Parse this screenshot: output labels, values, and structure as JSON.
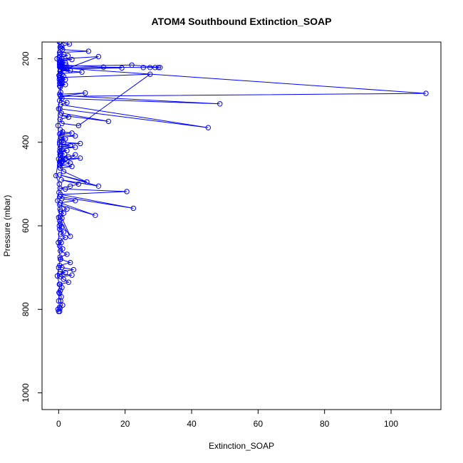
{
  "chart_data": {
    "type": "line",
    "title": "ATOM4 Southbound Extinction_SOAP",
    "xlabel": "Extinction_SOAP",
    "ylabel": "Pressure (mbar)",
    "xlim": [
      -5,
      115
    ],
    "ylim": [
      1040,
      160
    ],
    "y_reversed": true,
    "x_ticks": [
      0,
      20,
      40,
      60,
      80,
      100
    ],
    "y_ticks": [
      200,
      400,
      600,
      800,
      1000
    ],
    "grid": false,
    "legend": "none",
    "markers": "open-circle",
    "series_color": "#0000ff",
    "series": [
      {
        "x": [
          0.5,
          3.2,
          1.0,
          0.4,
          0.8,
          1.2,
          9.0,
          0.3,
          0.6,
          1.5,
          2.8,
          0.4,
          0.2,
          1.0,
          4.0,
          0.6,
          1.2,
          0.3,
          0.8,
          2.2,
          0.5,
          0.3,
          2.5,
          19.0,
          1.5,
          0.6,
          3.5,
          0.4,
          12.0,
          1.0,
          0.5,
          2.0,
          0.3,
          0.6,
          0.4,
          1.0,
          1.2,
          2.5,
          0.6,
          7.0,
          0.5,
          1.0,
          0.3,
          1.5,
          0.4,
          0.8,
          0.2,
          0.5,
          1.0,
          0.3,
          0.6,
          2.0,
          0.4,
          0.5
        ],
        "y": [
          160,
          165,
          170,
          172,
          175,
          178,
          182,
          185,
          188,
          190,
          193,
          195,
          198,
          200,
          202,
          205,
          208,
          210,
          212,
          215,
          218,
          220,
          221,
          222,
          224,
          226,
          228,
          230,
          195,
          200,
          205,
          210,
          212,
          215,
          218,
          220,
          222,
          225,
          228,
          232,
          235,
          238,
          240,
          242,
          245,
          248,
          250,
          252,
          255,
          258,
          260,
          262,
          265,
          268
        ]
      },
      {
        "x": [
          0.3,
          13.5,
          25.5,
          27.5,
          29.0,
          30.0,
          30.5,
          22.0,
          0.5,
          1.0,
          110.5,
          0.6,
          8.0,
          0.3,
          0.5,
          48.5,
          1.0,
          0.3,
          2.5,
          0.6,
          45.0,
          0.4,
          0.8,
          15.0,
          0.5,
          3.0,
          0.4,
          1.0,
          6.0,
          27.5,
          0.3,
          2.0,
          0.5,
          1.0,
          0.3
        ],
        "y": [
          215,
          220,
          221,
          221,
          221,
          221,
          221,
          215,
          218,
          222,
          283,
          290,
          282,
          285,
          288,
          308,
          295,
          300,
          305,
          310,
          365,
          320,
          330,
          350,
          335,
          340,
          345,
          355,
          360,
          237,
          245,
          250,
          255,
          260,
          265
        ]
      },
      {
        "x": [
          0.5,
          1.2,
          4.0,
          0.3,
          1.0,
          5.0,
          0.6,
          2.0,
          0.4,
          0.8,
          1.5,
          6.5,
          0.3,
          3.5,
          0.6,
          5.0,
          0.4,
          1.0,
          2.5,
          0.3,
          0.6,
          1.8,
          0.4,
          0.5,
          3.0,
          0.8,
          2.0,
          0.5,
          1.2,
          0.3,
          0.8,
          0.4
        ],
        "y": [
          370,
          375,
          378,
          380,
          382,
          385,
          388,
          392,
          395,
          398,
          400,
          403,
          405,
          408,
          410,
          412,
          415,
          418,
          420,
          422,
          425,
          428,
          430,
          432,
          435,
          438,
          440,
          442,
          445,
          448,
          450,
          452
        ]
      },
      {
        "x": [
          0.4,
          5.0,
          0.6,
          6.5,
          1.0,
          3.5,
          0.3,
          4.0,
          0.5,
          1.5,
          8.5,
          0.3,
          12.0,
          0.8,
          6.0,
          3.5,
          0.4,
          2.0,
          20.5,
          0.6,
          22.5,
          0.3,
          1.0,
          5.0,
          0.5,
          11.0,
          0.3,
          2.5,
          0.6,
          1.5,
          0.4,
          1.0,
          3.5,
          0.3
        ],
        "y": [
          455,
          430,
          440,
          438,
          445,
          450,
          455,
          458,
          462,
          470,
          495,
          478,
          505,
          490,
          500,
          505,
          510,
          512,
          518,
          525,
          558,
          530,
          535,
          540,
          545,
          575,
          550,
          560,
          565,
          570,
          578,
          582,
          625,
          588
        ]
      },
      {
        "x": [
          0.5,
          1.0,
          0.3,
          1.5,
          0.6,
          2.0,
          0.4,
          0.8,
          0.3,
          1.2,
          0.5,
          2.5,
          0.4,
          0.6,
          3.5,
          0.3,
          1.0,
          4.5,
          0.5,
          2.0,
          0.3,
          4.0,
          0.6,
          1.5,
          3.0,
          0.4,
          1.0,
          0.5,
          0.3,
          0.8,
          0.6,
          1.2,
          0.4,
          0.3
        ],
        "y": [
          595,
          602,
          608,
          615,
          620,
          628,
          635,
          640,
          648,
          655,
          660,
          668,
          675,
          680,
          688,
          695,
          700,
          705,
          710,
          712,
          715,
          718,
          722,
          728,
          735,
          740,
          748,
          755,
          762,
          770,
          780,
          790,
          798,
          805
        ]
      },
      {
        "x": [
          0.2,
          -0.5,
          0.1,
          0.6,
          0.0,
          -0.2,
          0.3,
          0.0,
          -0.8,
          0.2,
          0.1,
          -0.3,
          0.4,
          0.0,
          0.2,
          -0.1,
          0.5,
          0.0,
          -0.4,
          0.2,
          0.1,
          0.0,
          0.3,
          -0.2,
          0.0
        ],
        "y": [
          160,
          200,
          240,
          280,
          320,
          360,
          400,
          440,
          480,
          500,
          520,
          540,
          560,
          580,
          600,
          640,
          680,
          700,
          720,
          740,
          760,
          780,
          795,
          800,
          805
        ]
      }
    ]
  }
}
